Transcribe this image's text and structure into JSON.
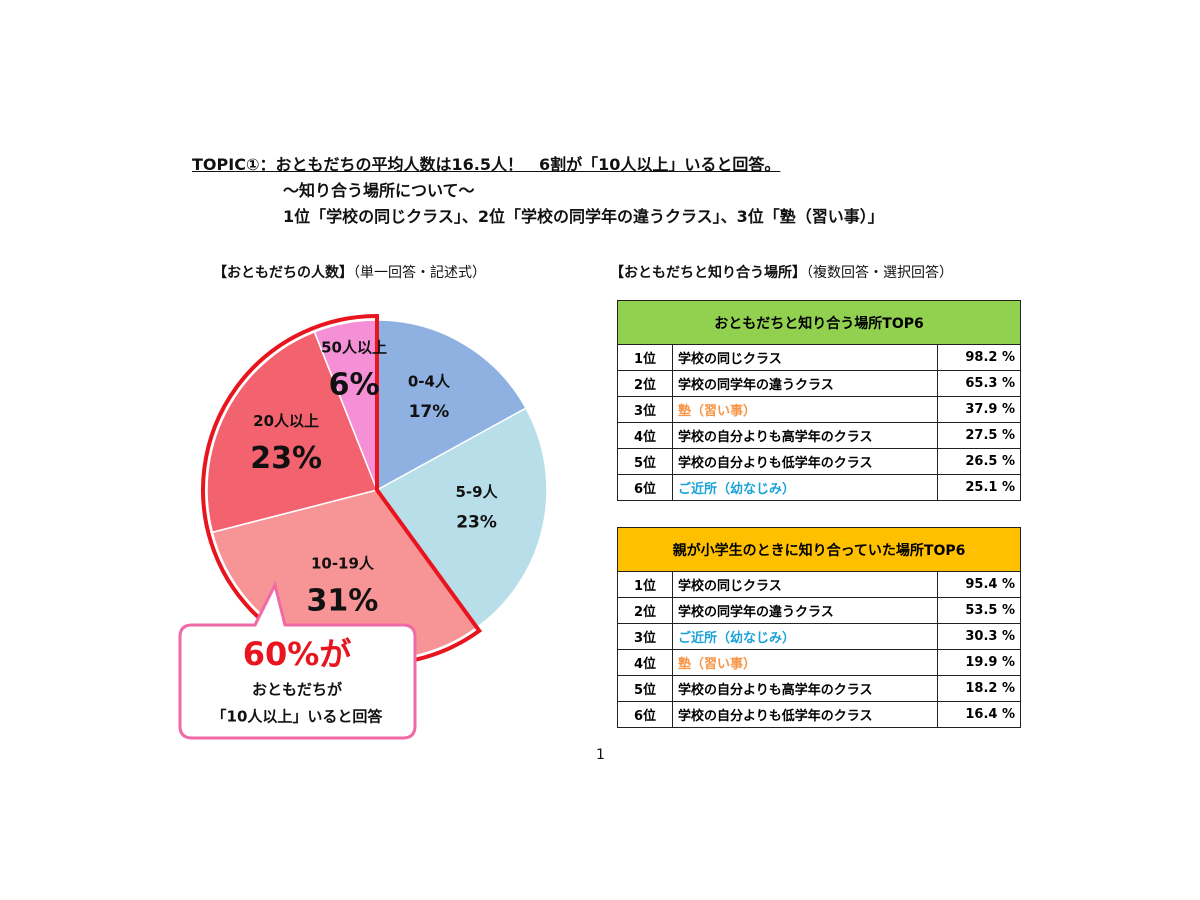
{
  "header": {
    "lines": [
      "TOPIC①：おともだちの平均人数は16.5人！　6割が「10人以上」いると回答。",
      "～知り合う場所について～",
      "1位「学校の同じクラス」、2位「学校の同学年の違うクラス」、3位「塾（習い事）」"
    ]
  },
  "chart_data": {
    "type": "pie",
    "title": "【おともだちの人数】",
    "subtitle": "（単一回答・記述式）",
    "categories": [
      "0-4人",
      "5-9人",
      "10-19人",
      "20人以上",
      "50人以上"
    ],
    "values": [
      17,
      23,
      31,
      23,
      6
    ],
    "value_labels": [
      "17%",
      "23%",
      "31%",
      "23%",
      "6%"
    ],
    "colors": [
      "#8eb1e1",
      "#b8dfe9",
      "#f79496",
      "#f2636f",
      "#f690d6"
    ],
    "highlight_from": 2,
    "highlight_color": "#e8141e",
    "callout": [
      "60%が",
      "おともだちが",
      "「10人以上」いると回答"
    ]
  },
  "places": {
    "title": "【おともだちと知り合う場所】",
    "subtitle": "（複数回答・選択回答）",
    "tables": [
      {
        "header": "おともだちと知り合う場所TOP6",
        "color": "#92d050",
        "rows": [
          {
            "rank": "1位",
            "place": "学校の同じクラス",
            "value": "98.2 %"
          },
          {
            "rank": "2位",
            "place": "学校の同学年の違うクラス",
            "value": "65.3 %"
          },
          {
            "rank": "3位",
            "place": "塾（習い事）",
            "value": "37.9 %",
            "color": "#f79646"
          },
          {
            "rank": "4位",
            "place": "学校の自分よりも高学年のクラス",
            "value": "27.5 %"
          },
          {
            "rank": "5位",
            "place": "学校の自分よりも低学年のクラス",
            "value": "26.5 %"
          },
          {
            "rank": "6位",
            "place": "ご近所（幼なじみ）",
            "value": "25.1 %",
            "color": "#1aa3d9"
          }
        ]
      },
      {
        "header": "親が小学生のときに知り合っていた場所TOP6",
        "color": "#ffc000",
        "rows": [
          {
            "rank": "1位",
            "place": "学校の同じクラス",
            "value": "95.4 %"
          },
          {
            "rank": "2位",
            "place": "学校の同学年の違うクラス",
            "value": "53.5 %"
          },
          {
            "rank": "3位",
            "place": "ご近所（幼なじみ）",
            "value": "30.3 %",
            "color": "#1aa3d9"
          },
          {
            "rank": "4位",
            "place": "塾（習い事）",
            "value": "19.9 %",
            "color": "#f79646"
          },
          {
            "rank": "5位",
            "place": "学校の自分よりも高学年のクラス",
            "value": "18.2 %"
          },
          {
            "rank": "6位",
            "place": "学校の自分よりも低学年のクラス",
            "value": "16.4 %"
          }
        ]
      }
    ]
  },
  "page_number": "1"
}
